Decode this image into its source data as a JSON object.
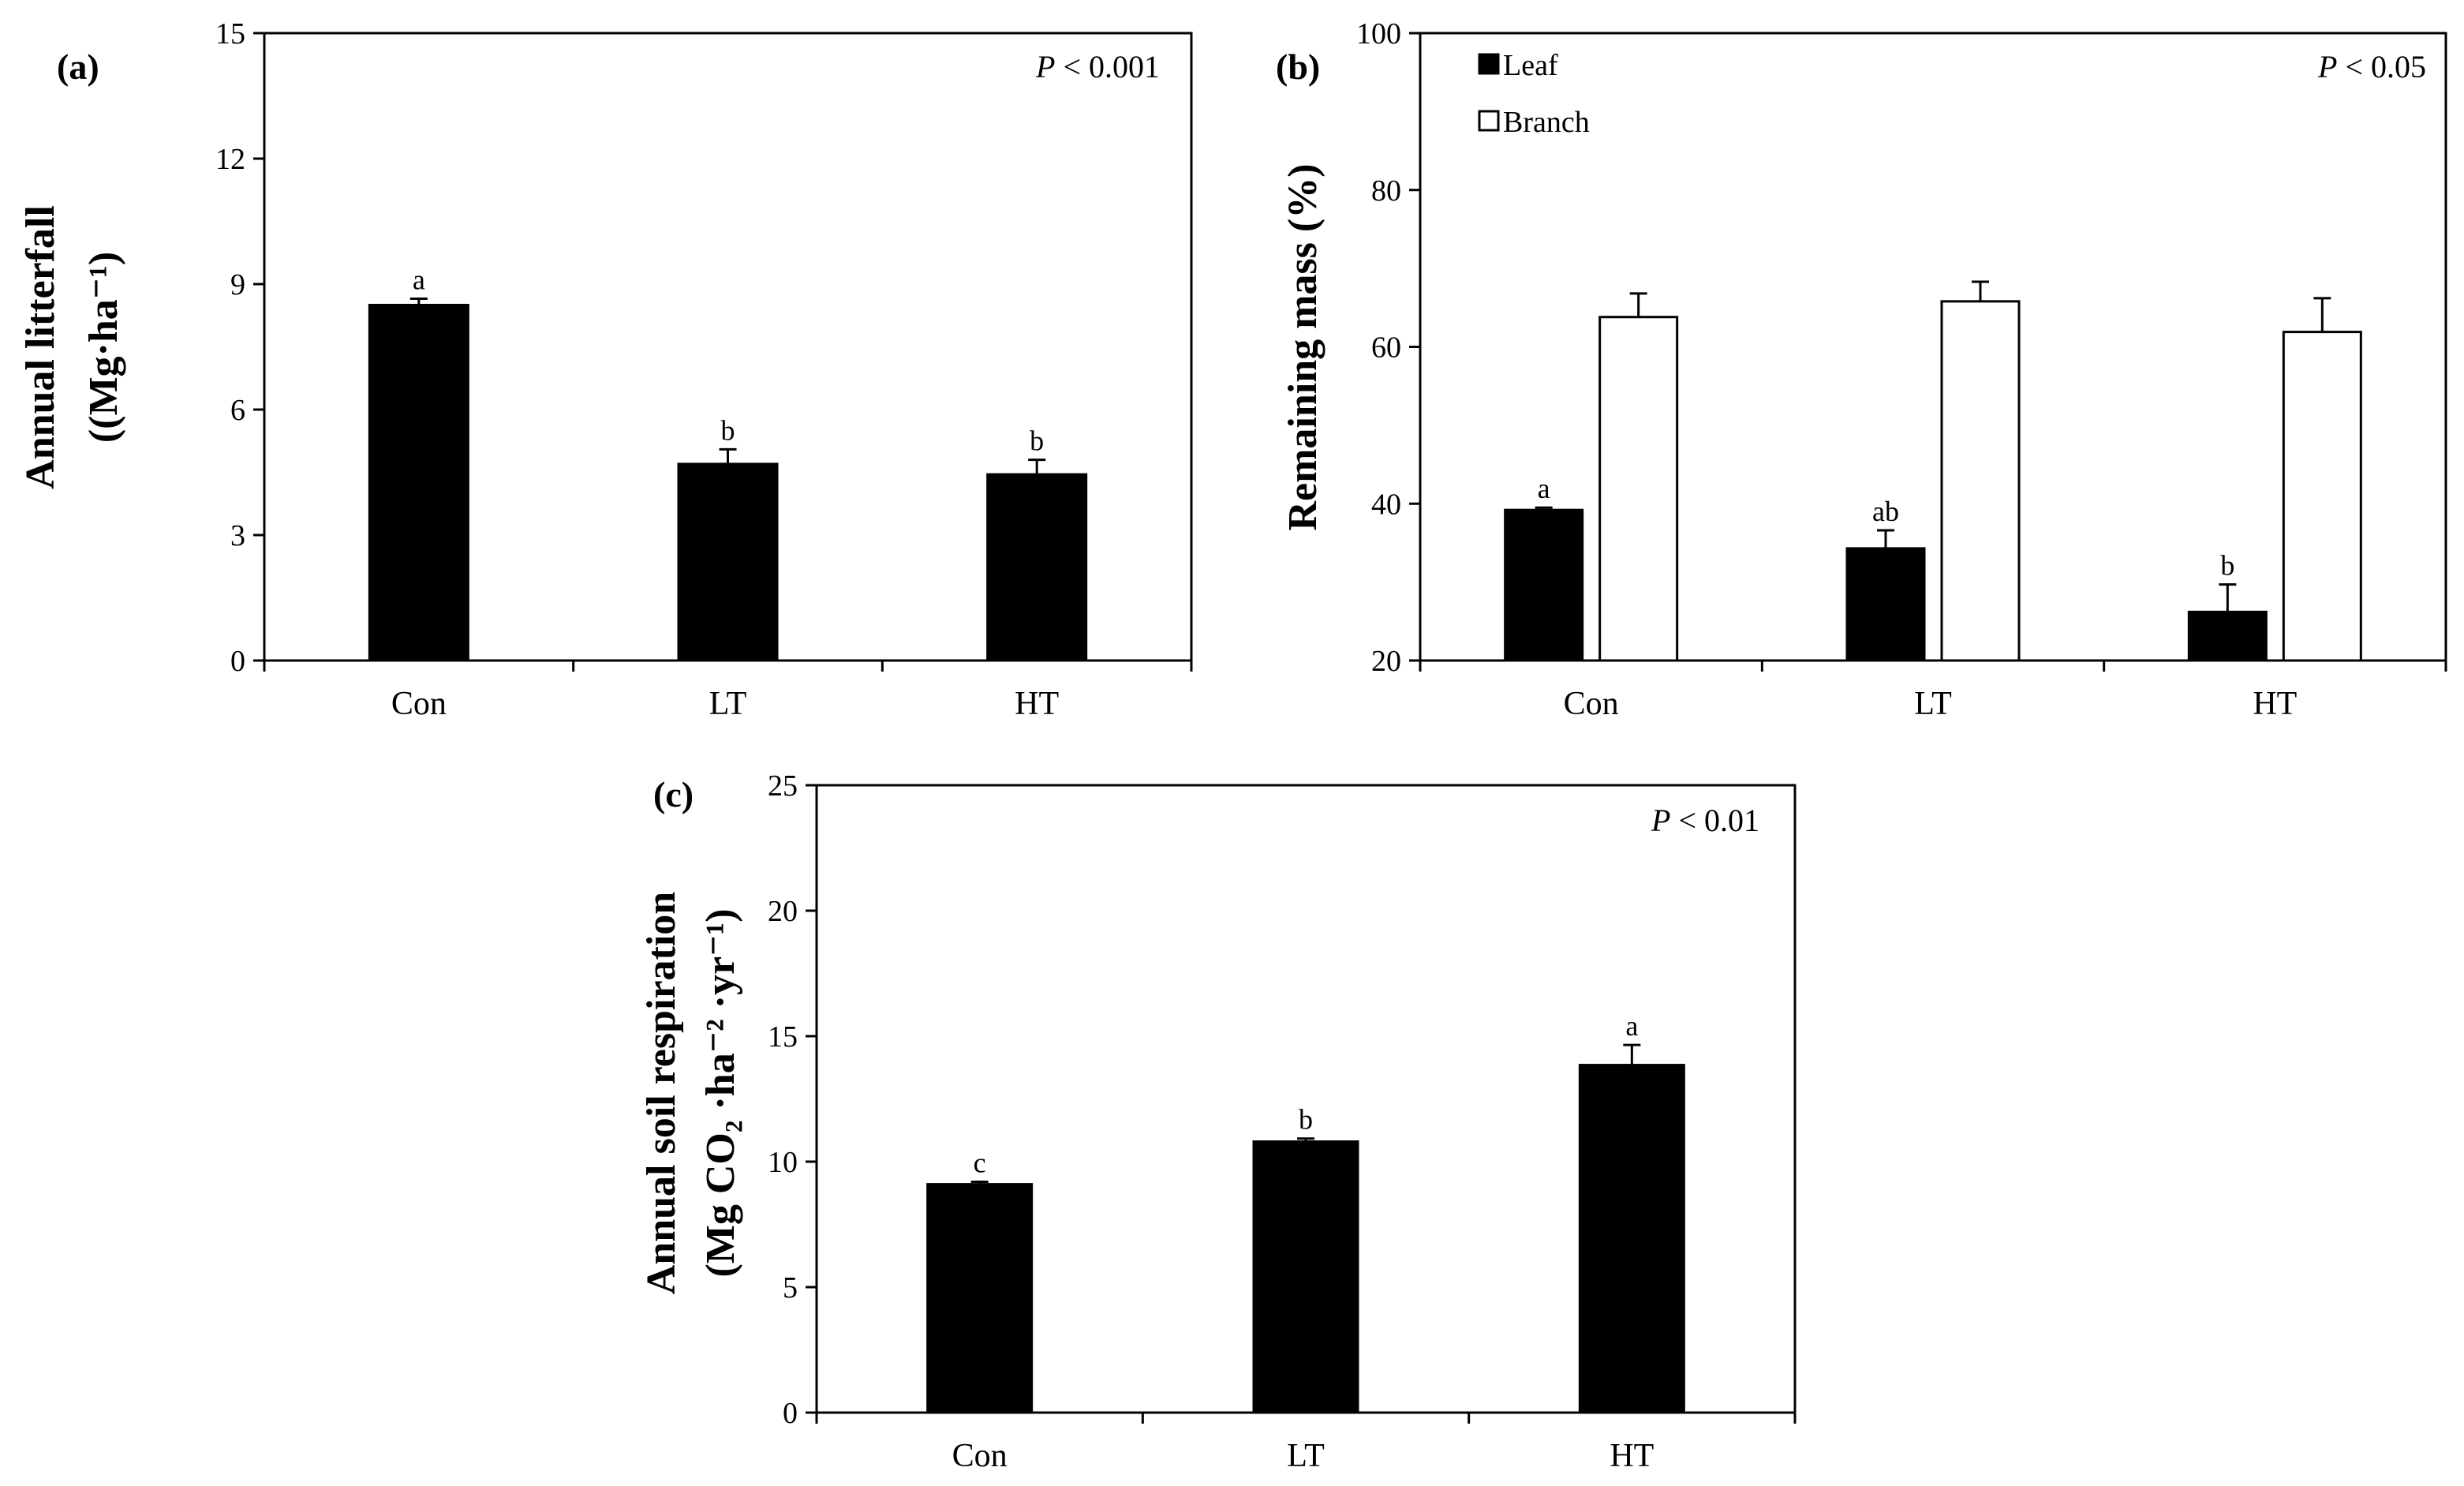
{
  "chart_data": [
    {
      "id": "a",
      "type": "bar",
      "panel_label": "(a)",
      "p_text": {
        "p": "P",
        "rest": " < 0.001"
      },
      "ylabel_lines": [
        "Annual litterfall",
        "((Mg·ha⁻¹)"
      ],
      "categories": [
        "Con",
        "LT",
        "HT"
      ],
      "series": [
        {
          "name": "Annual litterfall",
          "fill": "#000000",
          "values": [
            8.5,
            4.7,
            4.45
          ],
          "errors": [
            0.15,
            0.35,
            0.35
          ],
          "labels": [
            "a",
            "b",
            "b"
          ]
        }
      ],
      "ylim": [
        0,
        15
      ],
      "yticks": [
        0,
        3,
        6,
        9,
        12,
        15
      ],
      "ytick_labels": [
        "0",
        "3",
        "6",
        "9",
        "12",
        "15"
      ],
      "legend": null
    },
    {
      "id": "b",
      "type": "bar",
      "panel_label": "(b)",
      "p_text": {
        "p": "P",
        "rest": " <  0.05"
      },
      "ylabel_lines": [
        "Remaining mass (%)"
      ],
      "categories": [
        "Con",
        "LT",
        "HT"
      ],
      "series": [
        {
          "name": "Leaf",
          "fill": "#000000",
          "values": [
            39.2,
            34.3,
            26.2
          ],
          "errors": [
            0.3,
            2.3,
            3.5
          ],
          "labels": [
            "a",
            "ab",
            "b"
          ]
        },
        {
          "name": "Branch",
          "fill": "#ffffff",
          "values": [
            63.8,
            65.8,
            61.9
          ],
          "errors": [
            3.0,
            2.5,
            4.3
          ],
          "labels": [
            "",
            "",
            ""
          ]
        }
      ],
      "ylim": [
        20,
        100
      ],
      "yticks": [
        20,
        40,
        60,
        80,
        100
      ],
      "ytick_labels": [
        "20",
        "40",
        "60",
        "80",
        "100"
      ],
      "legend": [
        "Leaf",
        "Branch"
      ]
    },
    {
      "id": "c",
      "type": "bar",
      "panel_label": "(c)",
      "p_text": {
        "p": "P",
        "rest": " <  0.01"
      },
      "ylabel_lines": [
        "Annual soil respiration",
        "(Mg CO₂ ·ha⁻² ·yr⁻¹)"
      ],
      "categories": [
        "Con",
        "LT",
        "HT"
      ],
      "series": [
        {
          "name": "Annual soil respiration",
          "fill": "#000000",
          "values": [
            9.1,
            10.8,
            13.85
          ],
          "errors": [
            0.1,
            0.12,
            0.8
          ],
          "labels": [
            "c",
            "b",
            "a"
          ]
        }
      ],
      "ylim": [
        0,
        25
      ],
      "yticks": [
        0,
        5,
        10,
        15,
        20,
        25
      ],
      "ytick_labels": [
        "0",
        "5",
        "10",
        "15",
        "20",
        "25"
      ],
      "legend": null
    }
  ]
}
